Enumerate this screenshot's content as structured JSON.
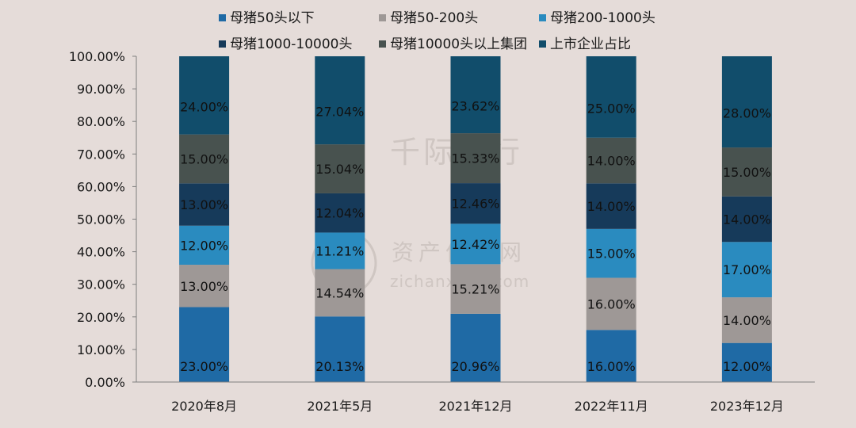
{
  "watermark": {
    "top_text": "千际投行",
    "mid_text": "资产信息网",
    "url": "zichanxinxi.com",
    "logo_letters": "AI"
  },
  "colors": {
    "background": "#e5dcd9"
  },
  "chart_data": {
    "type": "bar",
    "stacked": true,
    "categories": [
      "2020年8月",
      "2021年5月",
      "2021年12月",
      "2022年11月",
      "2023年12月"
    ],
    "ylim": [
      0,
      100
    ],
    "y_ticks": [
      "0.00%",
      "10.00%",
      "20.00%",
      "30.00%",
      "40.00%",
      "50.00%",
      "60.00%",
      "70.00%",
      "80.00%",
      "90.00%",
      "100.00%"
    ],
    "legend_position": "top",
    "grid": false,
    "series": [
      {
        "name": "母猪50头以下",
        "color": "#1f6aa5",
        "values": [
          23.0,
          20.13,
          20.96,
          16.0,
          12.0
        ],
        "labels": [
          "23.00%",
          "20.13%",
          "20.96%",
          "16.00%",
          "12.00%"
        ]
      },
      {
        "name": "母猪50-200头",
        "color": "#9e9896",
        "values": [
          13.0,
          14.54,
          15.21,
          16.0,
          14.0
        ],
        "labels": [
          "13.00%",
          "14.54%",
          "15.21%",
          "16.00%",
          "14.00%"
        ]
      },
      {
        "name": "母猪200-1000头",
        "color": "#2a8bbf",
        "values": [
          12.0,
          11.21,
          12.42,
          15.0,
          17.0
        ],
        "labels": [
          "12.00%",
          "11.21%",
          "12.42%",
          "15.00%",
          "17.00%"
        ]
      },
      {
        "name": "母猪1000-10000头",
        "color": "#163a5a",
        "values": [
          13.0,
          12.04,
          12.46,
          14.0,
          14.0
        ],
        "labels": [
          "13.00%",
          "12.04%",
          "12.46%",
          "14.00%",
          "14.00%"
        ]
      },
      {
        "name": "母猪10000头以上集团",
        "color": "#48524f",
        "values": [
          15.0,
          15.04,
          15.33,
          14.0,
          15.0
        ],
        "labels": [
          "15.00%",
          "15.04%",
          "15.33%",
          "14.00%",
          "15.00%"
        ]
      },
      {
        "name": "上市企业占比",
        "color": "#114d6b",
        "values": [
          24.0,
          27.04,
          23.62,
          25.0,
          28.0
        ],
        "labels": [
          "24.00%",
          "27.04%",
          "23.62%",
          "25.00%",
          "28.00%"
        ]
      }
    ]
  }
}
